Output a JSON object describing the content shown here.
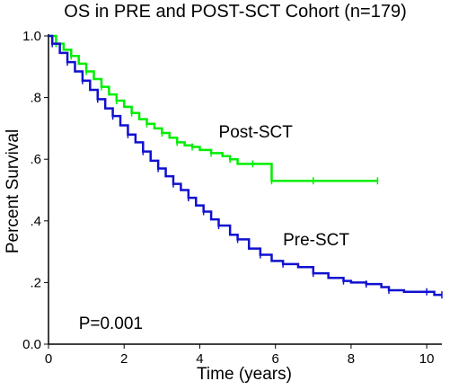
{
  "chart_data": {
    "type": "line",
    "title": "OS in PRE and POST-SCT Cohort (n=179)",
    "xlabel": "Time (years)",
    "ylabel": "Percent Survival",
    "xlim": [
      0,
      10.4
    ],
    "ylim": [
      0,
      1.0
    ],
    "xticks": [
      0,
      2,
      4,
      6,
      8,
      10
    ],
    "xtick_labels": [
      "0",
      "2",
      "4",
      "6",
      "8",
      "10"
    ],
    "yticks": [
      0.0,
      0.2,
      0.4,
      0.6,
      0.8,
      1.0
    ],
    "ytick_labels": [
      "0.0",
      ".2",
      ".4",
      ".6",
      ".8",
      "1.0"
    ],
    "grid": false,
    "series": [
      {
        "name": "Post-SCT",
        "color": "#00ee00",
        "step": true,
        "x": [
          0,
          0.2,
          0.4,
          0.6,
          0.8,
          1.0,
          1.2,
          1.4,
          1.6,
          1.8,
          2.0,
          2.2,
          2.4,
          2.6,
          2.8,
          3.0,
          3.2,
          3.4,
          3.6,
          3.8,
          4.0,
          4.3,
          4.6,
          4.8,
          5.0,
          5.4,
          5.8,
          5.9,
          6.5,
          7.0,
          8.0,
          8.7
        ],
        "y": [
          1.0,
          0.975,
          0.955,
          0.935,
          0.91,
          0.885,
          0.86,
          0.835,
          0.81,
          0.79,
          0.77,
          0.75,
          0.73,
          0.715,
          0.7,
          0.685,
          0.67,
          0.655,
          0.645,
          0.64,
          0.63,
          0.62,
          0.61,
          0.6,
          0.585,
          0.585,
          0.585,
          0.53,
          0.53,
          0.53,
          0.53,
          0.53
        ]
      },
      {
        "name": "Pre-SCT",
        "color": "#1010d0",
        "step": true,
        "x": [
          0,
          0.1,
          0.3,
          0.5,
          0.7,
          0.9,
          1.1,
          1.3,
          1.5,
          1.7,
          1.9,
          2.1,
          2.3,
          2.5,
          2.7,
          2.9,
          3.1,
          3.3,
          3.5,
          3.7,
          3.9,
          4.1,
          4.3,
          4.5,
          4.8,
          5.0,
          5.3,
          5.6,
          5.9,
          6.2,
          6.6,
          7.0,
          7.4,
          7.8,
          8.0,
          8.4,
          8.8,
          9.0,
          9.4,
          10.0,
          10.2,
          10.4
        ],
        "y": [
          1.0,
          0.975,
          0.945,
          0.915,
          0.885,
          0.855,
          0.825,
          0.795,
          0.765,
          0.74,
          0.71,
          0.68,
          0.655,
          0.625,
          0.595,
          0.57,
          0.545,
          0.52,
          0.5,
          0.475,
          0.45,
          0.43,
          0.405,
          0.385,
          0.355,
          0.34,
          0.31,
          0.29,
          0.27,
          0.26,
          0.25,
          0.23,
          0.215,
          0.205,
          0.2,
          0.195,
          0.185,
          0.175,
          0.17,
          0.17,
          0.16,
          0.16
        ]
      }
    ],
    "annotations": [
      {
        "text": "Post-SCT",
        "at": [
          4.5,
          0.67
        ]
      },
      {
        "text": "Pre-SCT",
        "at": [
          6.2,
          0.32
        ]
      },
      {
        "text": "P=0.001",
        "at": [
          0.8,
          0.05
        ]
      }
    ]
  }
}
